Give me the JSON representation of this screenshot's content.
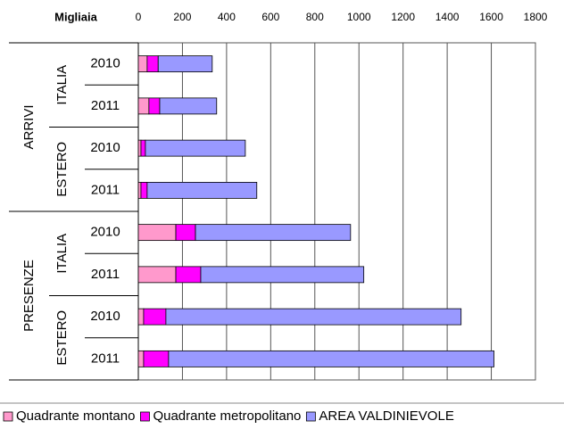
{
  "chart_data": {
    "type": "stacked-bar-horizontal",
    "axis_label": "Migliaia",
    "groups": [
      "ARRIVI",
      "PRESENZE"
    ],
    "subgroups": [
      "ITALIA",
      "ESTERO",
      "ITALIA",
      "ESTERO"
    ],
    "categories": [
      "2010",
      "2011",
      "2010",
      "2011",
      "2010",
      "2011",
      "2010",
      "2011"
    ],
    "series": [
      {
        "name": "Quadrante montano",
        "color": "#ff99cc",
        "values": [
          40,
          48,
          12,
          12,
          170,
          170,
          24,
          24
        ]
      },
      {
        "name": "Quadrante metropolitano",
        "color": "#ff00ff",
        "values": [
          50,
          49,
          20,
          28,
          89,
          113,
          101,
          113
        ]
      },
      {
        "name": "AREA VALDINIEVOLE",
        "color": "#9999ff",
        "values": [
          245,
          258,
          453,
          497,
          703,
          739,
          1338,
          1475
        ]
      }
    ],
    "xlim": [
      0,
      1800
    ],
    "xticks": [
      0,
      200,
      400,
      600,
      800,
      1000,
      1200,
      1400,
      1600,
      1800
    ],
    "grid": true,
    "legend": "bottom"
  }
}
